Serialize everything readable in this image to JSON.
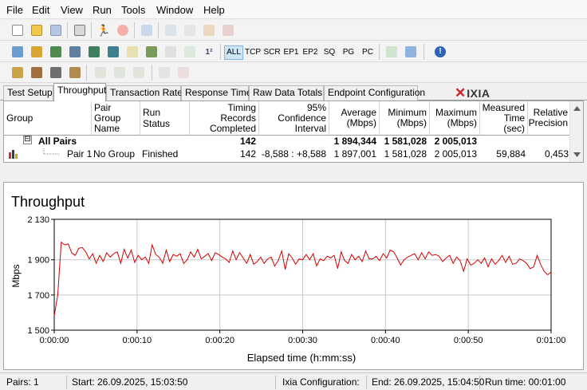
{
  "menu": [
    "File",
    "Edit",
    "View",
    "Run",
    "Tools",
    "Window",
    "Help"
  ],
  "toolbar": {
    "filters": [
      "ALL",
      "TCP",
      "SCR",
      "EP1",
      "EP2",
      "SQ",
      "PG",
      "PC"
    ],
    "brand": "IXIA"
  },
  "tabs": [
    "Test Setup",
    "Throughput",
    "Transaction Rate",
    "Response Time",
    "Raw Data Totals",
    "Endpoint Configuration"
  ],
  "active_tab": "Throughput",
  "table": {
    "headers": {
      "group": "Group",
      "pair_group_name_1": "Pair Group",
      "pair_group_name_2": "Name",
      "run_status": "Run Status",
      "timing_1": "Timing Records",
      "timing_2": "Completed",
      "confidence_1": "95% Confidence",
      "confidence_2": "Interval",
      "average_1": "Average",
      "average_2": "(Mbps)",
      "minimum_1": "Minimum",
      "minimum_2": "(Mbps)",
      "maximum_1": "Maximum",
      "maximum_2": "(Mbps)",
      "measured_1": "Measured",
      "measured_2": "Time (sec)",
      "relative_1": "Relative",
      "relative_2": "Precision"
    },
    "all_pairs": {
      "toggle": "⊟",
      "label": "All Pairs",
      "timing": "142",
      "average": "1 894,344",
      "minimum": "1 581,028",
      "maximum": "2 005,013"
    },
    "pair1": {
      "label": "Pair 1",
      "group_name": "No Group",
      "status": "Finished",
      "timing": "142",
      "confidence": "-8,588 : +8,588",
      "average": "1 897,001",
      "minimum": "1 581,028",
      "maximum": "2 005,013",
      "measured": "59,884",
      "relative": "0,453"
    }
  },
  "chart_data": {
    "type": "line",
    "title": "Throughput",
    "xlabel": "Elapsed time (h:mm:ss)",
    "ylabel": "Mbps",
    "ylim": [
      1500,
      2130
    ],
    "yticks": [
      "2 130",
      "1 900",
      "1 700",
      "1 500"
    ],
    "ytick_values": [
      2130,
      1900,
      1700,
      1500
    ],
    "xticks": [
      "0:00:00",
      "0:00:10",
      "0:00:20",
      "0:00:30",
      "0:00:40",
      "0:00:50",
      "0:01:00"
    ],
    "xlim_seconds": [
      0,
      60
    ],
    "grid": true,
    "line_color": "#d40000",
    "series": [
      {
        "values": [
          1581,
          1700,
          2000,
          1985,
          1990,
          1940,
          1925,
          1965,
          1970,
          1945,
          1905,
          1935,
          1880,
          1925,
          1890,
          1940,
          1915,
          1935,
          1945,
          1880,
          1960,
          1910,
          1955,
          1885,
          1925,
          1900,
          1915,
          1880,
          1985,
          1930,
          1915,
          1880,
          1955,
          1890,
          1930,
          1920,
          1935,
          1880,
          1900,
          1945,
          1915,
          1960,
          1905,
          1920,
          1935,
          1895,
          1940,
          1930,
          1915,
          1905,
          1885,
          1950,
          1900,
          1940,
          1910,
          1880,
          1930,
          1875,
          1890,
          1915,
          1880,
          1905,
          1915,
          1865,
          1895,
          1950,
          1845,
          1935,
          1910,
          1875,
          1905,
          1900,
          1930,
          1900,
          1935,
          1865,
          1905,
          1895,
          1920,
          1910,
          1925,
          1850,
          1945,
          1895,
          1880,
          1930,
          1900,
          1920,
          1890,
          1950,
          1905,
          1905,
          1920,
          1895,
          1935,
          1910,
          1955,
          1945,
          1910,
          1870,
          1900,
          1915,
          1925,
          1935,
          1900,
          1940,
          1905,
          1945,
          1925,
          1930,
          1920,
          1890,
          1910,
          1925,
          1880,
          1915,
          1895,
          1835,
          1905,
          1870,
          1880,
          1900,
          1880,
          1910,
          1860,
          1905,
          1875,
          1895,
          1925,
          1885,
          1920,
          1875,
          1880,
          1905,
          1895,
          1880,
          1850,
          1860,
          1925,
          1875,
          1835,
          1815,
          1830
        ]
      }
    ]
  },
  "status": {
    "pairs": "Pairs: 1",
    "start": "Start: 26.09.2025, 15:03:50",
    "config": "Ixia Configuration:",
    "end": "End: 26.09.2025, 15:04:50",
    "runtime": "Run time: 00:01:00"
  },
  "colors": {
    "accent": "#cc2222",
    "active_filter": "#cde6f7"
  }
}
